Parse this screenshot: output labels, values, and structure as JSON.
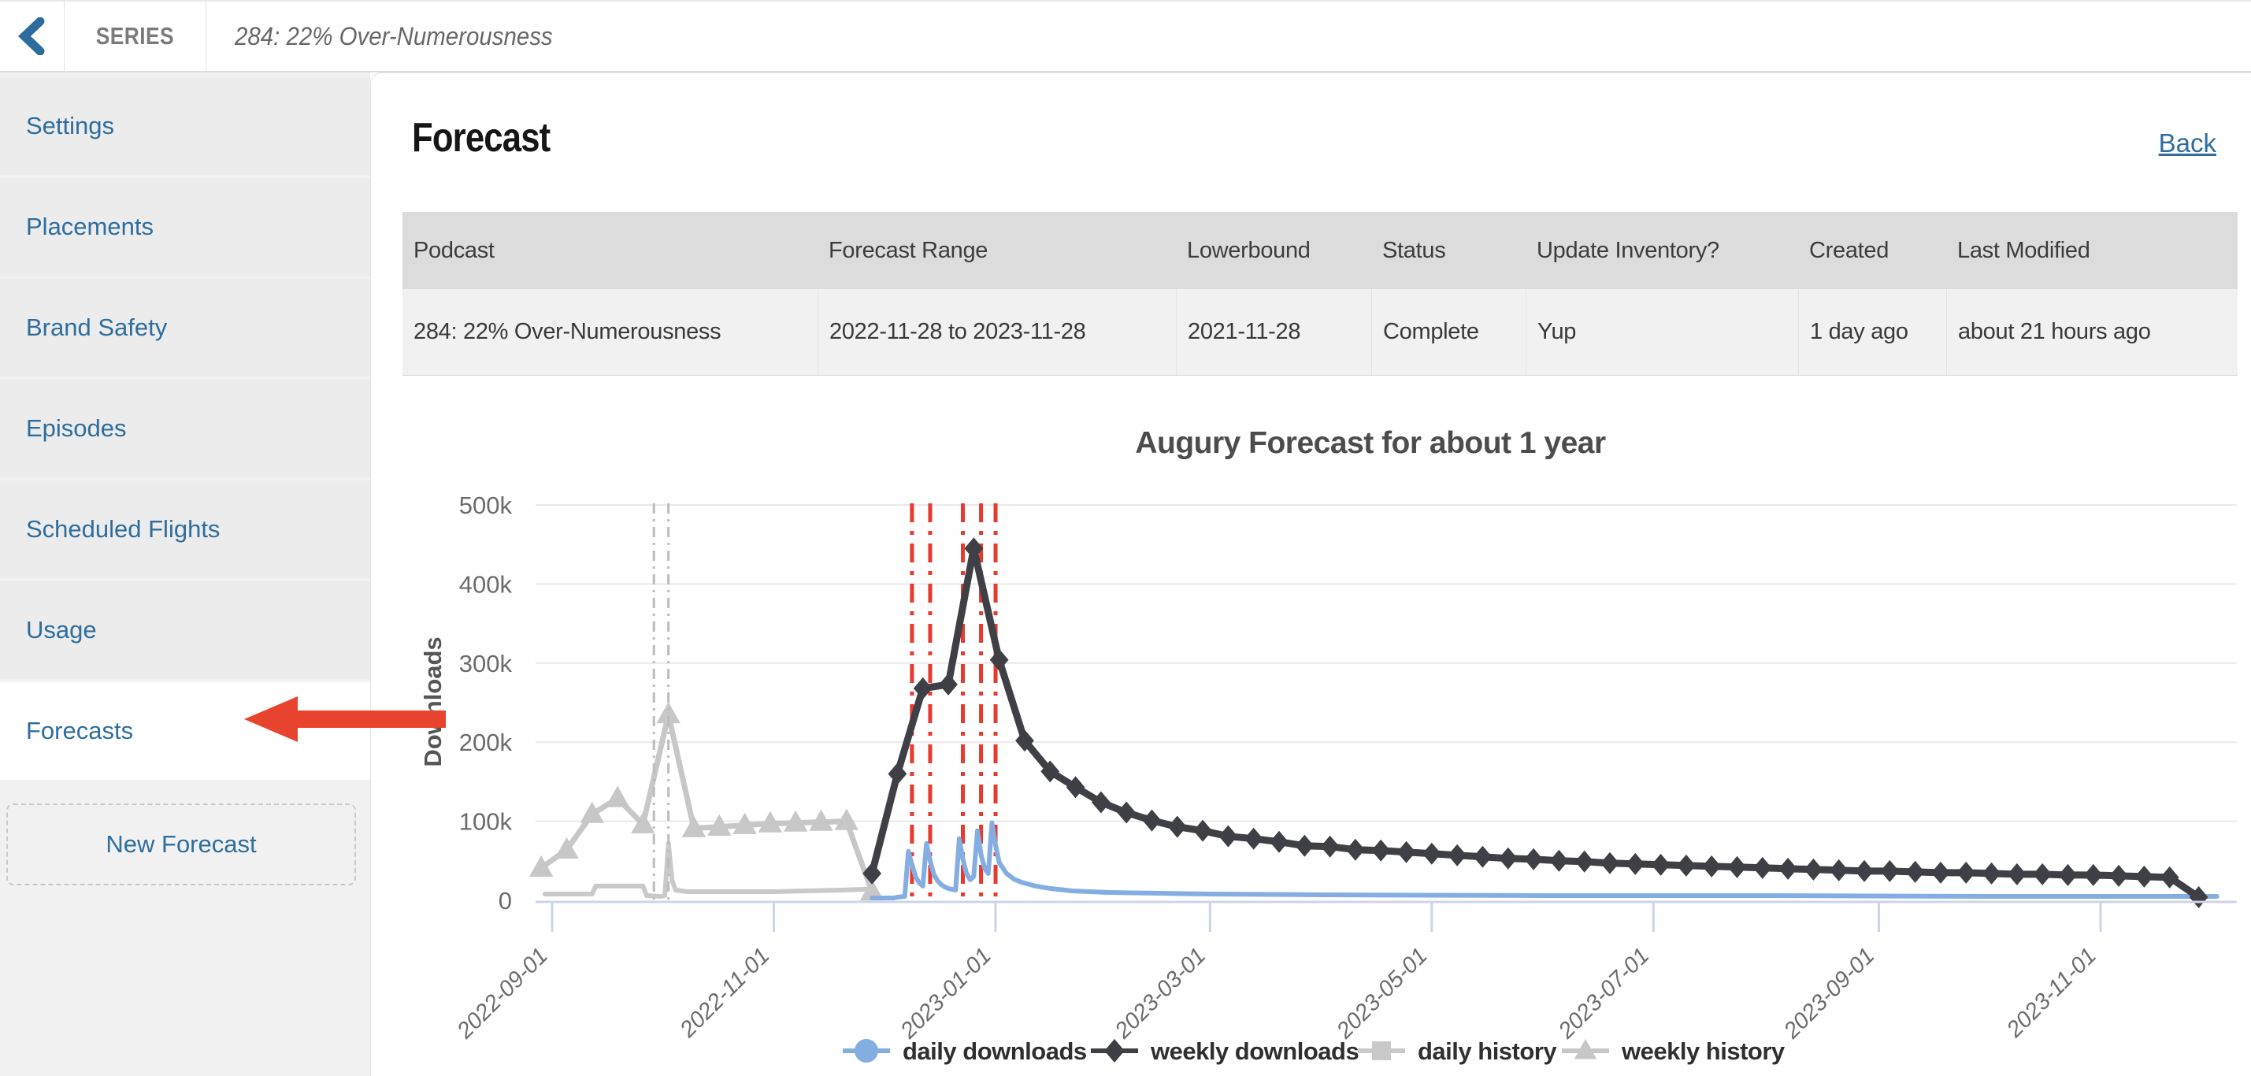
{
  "topbar": {
    "back_icon": "chevron-left",
    "section_label": "SERIES",
    "series_title": "284: 22% Over-Numerousness"
  },
  "sidebar": {
    "items": [
      {
        "label": "Settings",
        "active": false
      },
      {
        "label": "Placements",
        "active": false
      },
      {
        "label": "Brand Safety",
        "active": false
      },
      {
        "label": "Episodes",
        "active": false
      },
      {
        "label": "Scheduled Flights",
        "active": false
      },
      {
        "label": "Usage",
        "active": false
      },
      {
        "label": "Forecasts",
        "active": true
      }
    ],
    "new_forecast_button": "New Forecast"
  },
  "main": {
    "heading": "Forecast",
    "back_link": "Back",
    "table": {
      "columns": [
        "Podcast",
        "Forecast Range",
        "Lowerbound",
        "Status",
        "Update Inventory?",
        "Created",
        "Last Modified"
      ],
      "rows": [
        {
          "podcast": "284: 22% Over-Numerousness",
          "forecast_range": "2022-11-28 to 2023-11-28",
          "lowerbound": "2021-11-28",
          "status": "Complete",
          "update_inventory": "Yup",
          "created": "1 day ago",
          "last_modified": "about 21 hours ago"
        }
      ]
    }
  },
  "chart_data": {
    "type": "line",
    "title": "Augury Forecast for about 1 year",
    "xlabel": "",
    "ylabel": "Downloads",
    "ylim": [
      0,
      500000
    ],
    "y_ticks": [
      "0",
      "100k",
      "200k",
      "300k",
      "400k",
      "500k"
    ],
    "x_ticks": [
      "2022-09-01",
      "2022-11-01",
      "2023-01-01",
      "2023-03-01",
      "2023-05-01",
      "2023-07-01",
      "2023-09-01",
      "2023-11-01"
    ],
    "x_range": [
      "2022-08-28",
      "2023-12-05"
    ],
    "grid": true,
    "legend_position": "bottom",
    "legend": [
      "daily downloads",
      "weekly downloads",
      "daily history",
      "weekly history"
    ],
    "series": [
      {
        "name": "weekly history",
        "color": "#c7c7c7",
        "marker": "triangle",
        "points": [
          [
            "2022-08-29",
            41000
          ],
          [
            "2022-09-05",
            64000
          ],
          [
            "2022-09-12",
            109000
          ],
          [
            "2022-09-19",
            129000
          ],
          [
            "2022-09-26",
            96000
          ],
          [
            "2022-10-03",
            235000
          ],
          [
            "2022-10-10",
            91000
          ],
          [
            "2022-10-17",
            93000
          ],
          [
            "2022-10-24",
            95000
          ],
          [
            "2022-10-31",
            97000
          ],
          [
            "2022-11-07",
            98000
          ],
          [
            "2022-11-14",
            99000
          ],
          [
            "2022-11-21",
            100000
          ],
          [
            "2022-11-28",
            11000
          ]
        ]
      },
      {
        "name": "daily history",
        "color": "#c9c9c9",
        "marker": "square",
        "points": [
          [
            "2022-08-30",
            8000
          ],
          [
            "2022-09-12",
            8000
          ],
          [
            "2022-09-13",
            18000
          ],
          [
            "2022-09-26",
            18000
          ],
          [
            "2022-09-27",
            6000
          ],
          [
            "2022-10-01",
            5000
          ],
          [
            "2022-10-02",
            6000
          ],
          [
            "2022-10-03",
            72000
          ],
          [
            "2022-10-04",
            25000
          ],
          [
            "2022-10-05",
            13000
          ],
          [
            "2022-10-08",
            11000
          ],
          [
            "2022-11-01",
            11000
          ],
          [
            "2022-11-20",
            13000
          ],
          [
            "2022-11-27",
            14000
          ]
        ]
      },
      {
        "name": "daily downloads",
        "color": "#84aee1",
        "marker": "circle",
        "points": [
          [
            "2022-11-28",
            3000
          ],
          [
            "2022-12-04",
            3000
          ],
          [
            "2022-12-05",
            4000
          ],
          [
            "2022-12-07",
            5000
          ],
          [
            "2022-12-08",
            62000
          ],
          [
            "2022-12-09",
            45000
          ],
          [
            "2022-12-10",
            30000
          ],
          [
            "2022-12-11",
            22000
          ],
          [
            "2022-12-12",
            18000
          ],
          [
            "2022-12-13",
            72000
          ],
          [
            "2022-12-14",
            50000
          ],
          [
            "2022-12-15",
            33000
          ],
          [
            "2022-12-16",
            25000
          ],
          [
            "2022-12-17",
            20000
          ],
          [
            "2022-12-18",
            17000
          ],
          [
            "2022-12-19",
            15000
          ],
          [
            "2022-12-20",
            14000
          ],
          [
            "2022-12-21",
            13000
          ],
          [
            "2022-12-22",
            78000
          ],
          [
            "2022-12-23",
            52000
          ],
          [
            "2022-12-24",
            34000
          ],
          [
            "2022-12-25",
            26000
          ],
          [
            "2022-12-26",
            30000
          ],
          [
            "2022-12-27",
            88000
          ],
          [
            "2022-12-28",
            58000
          ],
          [
            "2022-12-29",
            40000
          ],
          [
            "2022-12-30",
            34000
          ],
          [
            "2022-12-31",
            98000
          ],
          [
            "2023-01-01",
            70000
          ],
          [
            "2023-01-02",
            48000
          ],
          [
            "2023-01-04",
            34000
          ],
          [
            "2023-01-06",
            27000
          ],
          [
            "2023-01-08",
            23000
          ],
          [
            "2023-01-12",
            18000
          ],
          [
            "2023-01-16",
            15000
          ],
          [
            "2023-01-22",
            12000
          ],
          [
            "2023-02-01",
            10000
          ],
          [
            "2023-02-15",
            9000
          ],
          [
            "2023-03-01",
            8000
          ],
          [
            "2023-04-01",
            7000
          ],
          [
            "2023-06-01",
            6000
          ],
          [
            "2023-08-01",
            6000
          ],
          [
            "2023-10-01",
            5000
          ],
          [
            "2023-11-28",
            5000
          ],
          [
            "2023-12-03",
            5000
          ]
        ]
      },
      {
        "name": "weekly downloads",
        "color": "#3f3f46",
        "marker": "diamond",
        "points": [
          [
            "2022-11-28",
            34000
          ],
          [
            "2022-12-05",
            160000
          ],
          [
            "2022-12-12",
            268000
          ],
          [
            "2022-12-19",
            273000
          ],
          [
            "2022-12-26",
            445000
          ],
          [
            "2023-01-02",
            304000
          ],
          [
            "2023-01-09",
            202000
          ],
          [
            "2023-01-16",
            163000
          ],
          [
            "2023-01-23",
            143000
          ],
          [
            "2023-01-30",
            124000
          ],
          [
            "2023-02-06",
            111000
          ],
          [
            "2023-02-13",
            101000
          ],
          [
            "2023-02-20",
            93000
          ],
          [
            "2023-02-27",
            88000
          ],
          [
            "2023-03-06",
            81000
          ],
          [
            "2023-03-13",
            78000
          ],
          [
            "2023-03-20",
            74000
          ],
          [
            "2023-03-27",
            69000
          ],
          [
            "2023-04-03",
            68000
          ],
          [
            "2023-04-10",
            64000
          ],
          [
            "2023-04-17",
            63000
          ],
          [
            "2023-04-24",
            61000
          ],
          [
            "2023-05-01",
            59000
          ],
          [
            "2023-05-08",
            57000
          ],
          [
            "2023-05-15",
            55000
          ],
          [
            "2023-05-22",
            53000
          ],
          [
            "2023-05-29",
            52000
          ],
          [
            "2023-06-05",
            50000
          ],
          [
            "2023-06-12",
            49000
          ],
          [
            "2023-06-19",
            47000
          ],
          [
            "2023-06-26",
            46000
          ],
          [
            "2023-07-03",
            45000
          ],
          [
            "2023-07-10",
            44000
          ],
          [
            "2023-07-17",
            43000
          ],
          [
            "2023-07-24",
            42000
          ],
          [
            "2023-07-31",
            41000
          ],
          [
            "2023-08-07",
            40000
          ],
          [
            "2023-08-14",
            39000
          ],
          [
            "2023-08-21",
            38000
          ],
          [
            "2023-08-28",
            37000
          ],
          [
            "2023-09-04",
            37000
          ],
          [
            "2023-09-11",
            36000
          ],
          [
            "2023-09-18",
            35000
          ],
          [
            "2023-09-25",
            35000
          ],
          [
            "2023-10-02",
            34000
          ],
          [
            "2023-10-09",
            33000
          ],
          [
            "2023-10-16",
            33000
          ],
          [
            "2023-10-23",
            32000
          ],
          [
            "2023-10-30",
            32000
          ],
          [
            "2023-11-06",
            31000
          ],
          [
            "2023-11-13",
            30000
          ],
          [
            "2023-11-20",
            29000
          ],
          [
            "2023-11-28",
            4000
          ]
        ]
      }
    ],
    "vlines": [
      {
        "name": "history-markers",
        "dates": [
          "2022-09-29",
          "2022-10-03"
        ],
        "color": "#bcbcbc",
        "style": "dashdot"
      },
      {
        "name": "episode-markers",
        "dates": [
          "2022-12-09",
          "2022-12-14",
          "2022-12-23",
          "2022-12-28",
          "2023-01-01"
        ],
        "color": "#e8392e",
        "style": "dashdot"
      }
    ]
  },
  "annotations": {
    "arrow_color": "#e8432e",
    "arrow_points_to": "Forecasts"
  },
  "colors": {
    "accent_blue": "#2e6d9e",
    "axis_line": "#ccd4e8",
    "grid_line": "#e9e9e9",
    "tick_text": "#6b6b6b"
  }
}
